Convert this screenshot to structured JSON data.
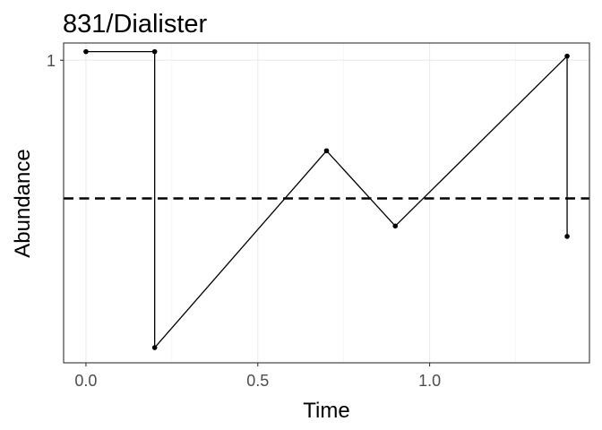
{
  "chart_data": {
    "type": "line",
    "title": "831/Dialister",
    "xlabel": "Time",
    "ylabel": "Abundance",
    "xlim": [
      -0.065,
      1.465
    ],
    "ylim": [
      0.124,
      1.05
    ],
    "x_ticks": [
      0.0,
      0.5,
      1.0
    ],
    "x_tick_labels": [
      "0.0",
      "0.5",
      "1.0"
    ],
    "y_ticks": [
      1
    ],
    "y_tick_labels": [
      "1"
    ],
    "grid": true,
    "theme": "bw",
    "series": [
      {
        "x": [
          0.0,
          0.2,
          0.2,
          0.7,
          0.9,
          1.4,
          1.4
        ],
        "y": [
          1.025,
          1.025,
          0.168,
          0.738,
          0.52,
          1.012,
          0.49
        ],
        "color": "#000000",
        "markers": true
      }
    ],
    "reference_line": {
      "y": 0.6,
      "style": "dashed",
      "color": "#000000"
    }
  }
}
